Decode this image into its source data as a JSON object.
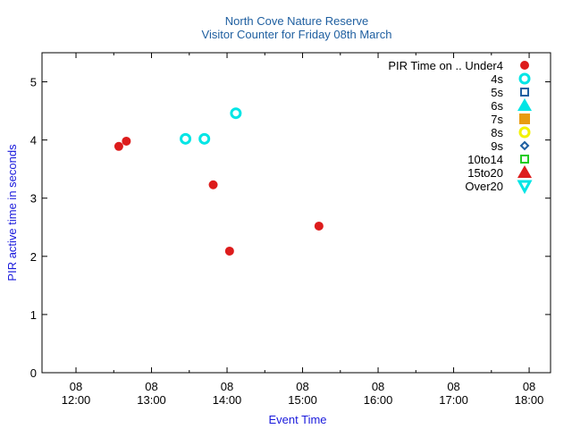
{
  "chart_data": {
    "type": "scatter",
    "title": "North Cove Nature Reserve",
    "subtitle": "Visitor Counter for Friday 08th March",
    "xlabel": "Event Time",
    "ylabel": "PIR active time in seconds",
    "legend_title": "PIR Time on ..",
    "legend_position": "top-right",
    "grid": false,
    "xlim": [
      "11:33",
      "18:17"
    ],
    "ylim": [
      0,
      5.5
    ],
    "x_ticks": [
      {
        "value": "12:00",
        "line1": "08",
        "line2": "12:00"
      },
      {
        "value": "13:00",
        "line1": "08",
        "line2": "13:00"
      },
      {
        "value": "14:00",
        "line1": "08",
        "line2": "14:00"
      },
      {
        "value": "15:00",
        "line1": "08",
        "line2": "15:00"
      },
      {
        "value": "16:00",
        "line1": "08",
        "line2": "16:00"
      },
      {
        "value": "17:00",
        "line1": "08",
        "line2": "17:00"
      },
      {
        "value": "18:00",
        "line1": "08",
        "line2": "18:00"
      }
    ],
    "y_ticks": [
      0,
      1,
      2,
      3,
      4,
      5
    ],
    "series": [
      {
        "name": "Under4",
        "marker": "circle-filled",
        "color": "#dd1c1c",
        "points": [
          {
            "x": "12:34",
            "y": 3.89
          },
          {
            "x": "12:40",
            "y": 3.98
          },
          {
            "x": "13:49",
            "y": 3.23
          },
          {
            "x": "14:02",
            "y": 2.09
          },
          {
            "x": "15:13",
            "y": 2.52
          }
        ]
      },
      {
        "name": "4s",
        "marker": "circle-open",
        "color": "#00e5e5",
        "points": [
          {
            "x": "13:27",
            "y": 4.02
          },
          {
            "x": "13:42",
            "y": 4.02
          },
          {
            "x": "14:07",
            "y": 4.46
          }
        ]
      },
      {
        "name": "5s",
        "marker": "square-open",
        "color": "#1f5fa0",
        "points": []
      },
      {
        "name": "6s",
        "marker": "triangle-filled",
        "color": "#00e5e5",
        "points": []
      },
      {
        "name": "7s",
        "marker": "square-filled",
        "color": "#e89c10",
        "points": []
      },
      {
        "name": "8s",
        "marker": "circle-open",
        "color": "#f2f200",
        "points": []
      },
      {
        "name": "9s",
        "marker": "diamond-open",
        "color": "#1f5fa0",
        "points": []
      },
      {
        "name": "10to14",
        "marker": "square-open",
        "color": "#22cc22",
        "points": []
      },
      {
        "name": "15to20",
        "marker": "triangle-filled",
        "color": "#dd1c1c",
        "points": []
      },
      {
        "name": "Over20",
        "marker": "triangle-down-open",
        "color": "#00e5e5",
        "points": []
      }
    ]
  }
}
